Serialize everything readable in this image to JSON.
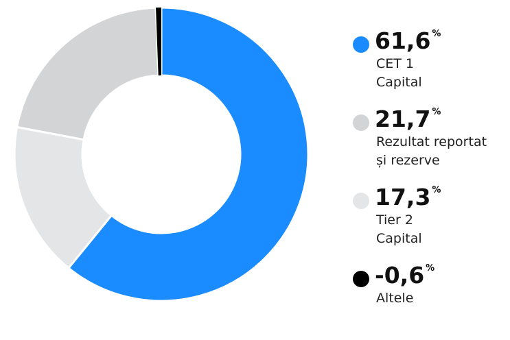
{
  "chart_data": {
    "type": "donut",
    "categories": [
      "CET 1\nCapital",
      "Rezultat reportat\nși rezerve",
      "Tier 2\nCapital",
      "Altele"
    ],
    "values": [
      61.6,
      21.7,
      17.3,
      -0.6
    ],
    "value_labels": [
      "61,6",
      "21,7",
      "17,3",
      "-0,6"
    ],
    "unit": "%",
    "colors": [
      "#1a8cff",
      "#d3d4d6",
      "#e4e5e7",
      "#000000"
    ]
  }
}
